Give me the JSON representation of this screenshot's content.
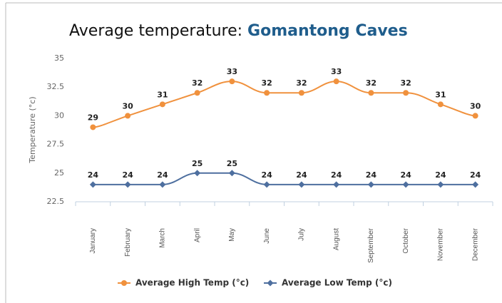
{
  "chart_data": {
    "type": "line",
    "title": "Average temperature: ",
    "title_highlight": "Gomantong Caves",
    "y_label": "Temperature (°c)",
    "categories": [
      "January",
      "February",
      "March",
      "April",
      "May",
      "June",
      "July",
      "August",
      "September",
      "October",
      "November",
      "December"
    ],
    "series": [
      {
        "name": "Average High Temp (°c)",
        "color": "#f0913d",
        "marker": "circle",
        "values": [
          29,
          30,
          31,
          32,
          33,
          32,
          32,
          33,
          32,
          32,
          31,
          30
        ]
      },
      {
        "name": "Average Low Temp (°c)",
        "color": "#4e6f9f",
        "marker": "diamond",
        "values": [
          24,
          24,
          24,
          25,
          25,
          24,
          24,
          24,
          24,
          24,
          24,
          24
        ]
      }
    ],
    "ylim": [
      22.5,
      35
    ],
    "yticks": [
      22.5,
      25,
      27.5,
      30,
      32.5,
      35
    ],
    "grid": false,
    "legend": "bottom"
  }
}
